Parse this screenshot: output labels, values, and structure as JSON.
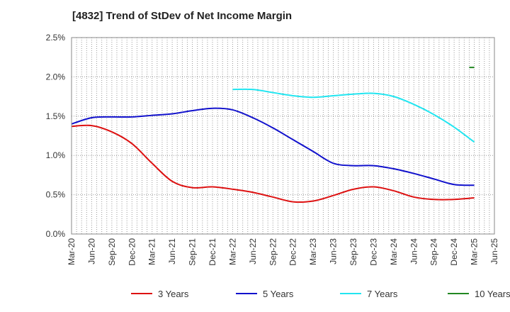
{
  "chart_data": {
    "type": "line",
    "title": "[4832]  Trend of StDev of Net Income Margin",
    "xlabel": "",
    "ylabel": "",
    "ylim": [
      0,
      2.5
    ],
    "y_ticks": [
      0,
      0.5,
      1.0,
      1.5,
      2.0,
      2.5
    ],
    "y_tick_labels": [
      "0.0%",
      "0.5%",
      "1.0%",
      "1.5%",
      "2.0%",
      "2.5%"
    ],
    "x_tick_labels": [
      "Mar-20",
      "Jun-20",
      "Sep-20",
      "Dec-20",
      "Mar-21",
      "Jun-21",
      "Sep-21",
      "Dec-21",
      "Mar-22",
      "Jun-22",
      "Sep-22",
      "Dec-22",
      "Mar-23",
      "Jun-23",
      "Sep-23",
      "Dec-23",
      "Mar-24",
      "Jun-24",
      "Sep-24",
      "Dec-24",
      "Mar-25",
      "Jun-25"
    ],
    "grid": true,
    "legend_position": "bottom",
    "series": [
      {
        "name": "3 Years",
        "color": "#dd1111",
        "values": [
          1.37,
          1.38,
          1.3,
          1.15,
          0.9,
          0.67,
          0.59,
          0.6,
          0.57,
          0.53,
          0.47,
          0.41,
          0.42,
          0.49,
          0.57,
          0.6,
          0.55,
          0.47,
          0.44,
          0.44,
          0.46,
          null
        ]
      },
      {
        "name": "5 Years",
        "color": "#1111cc",
        "values": [
          1.4,
          1.48,
          1.49,
          1.49,
          1.51,
          1.53,
          1.57,
          1.6,
          1.58,
          1.48,
          1.35,
          1.2,
          1.05,
          0.9,
          0.87,
          0.87,
          0.83,
          0.77,
          0.7,
          0.63,
          0.62,
          null
        ]
      },
      {
        "name": "7 Years",
        "color": "#22e5f0",
        "values": [
          null,
          null,
          null,
          null,
          null,
          null,
          null,
          null,
          1.84,
          1.84,
          1.8,
          1.76,
          1.74,
          1.76,
          1.78,
          1.79,
          1.75,
          1.65,
          1.52,
          1.36,
          1.17,
          null
        ]
      },
      {
        "name": "10 Years",
        "color": "#228822",
        "values": [
          null,
          null,
          null,
          null,
          null,
          null,
          null,
          null,
          null,
          null,
          null,
          null,
          null,
          null,
          null,
          null,
          null,
          null,
          null,
          null,
          2.12,
          null
        ],
        "segment_start_offset": -0.25
      }
    ]
  }
}
